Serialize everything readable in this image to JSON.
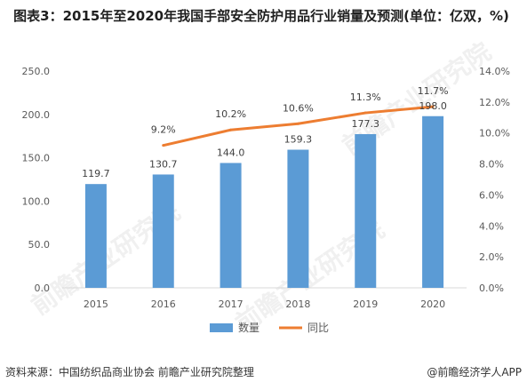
{
  "title": "图表3：2015年至2020年我国手部安全防护用品行业销量及预测(单位：亿双，%)",
  "footer": {
    "source": "资料来源：中国纺织品商业协会 前瞻产业研究院整理",
    "brand": "@前瞻经济学人APP"
  },
  "watermark": "前瞻产业研究院",
  "colors": {
    "bar": "#5B9BD5",
    "line": "#ED7D31"
  },
  "chart_data": {
    "type": "bar",
    "categories": [
      "2015",
      "2016",
      "2017",
      "2018",
      "2019",
      "2020"
    ],
    "series": [
      {
        "name": "数量",
        "type": "bar",
        "axis": "left",
        "values": [
          119.7,
          130.7,
          144.0,
          159.3,
          177.3,
          198.0
        ],
        "labels": [
          "119.7",
          "130.7",
          "144.0",
          "159.3",
          "177.3",
          "198.0"
        ]
      },
      {
        "name": "同比",
        "type": "line",
        "axis": "right",
        "values": [
          null,
          9.2,
          10.2,
          10.6,
          11.3,
          11.7
        ],
        "labels": [
          "",
          "9.2%",
          "10.2%",
          "10.6%",
          "11.3%",
          "11.7%"
        ]
      }
    ],
    "ylim_left": [
      0,
      250
    ],
    "yticks_left": [
      "0.0",
      "50.0",
      "100.0",
      "150.0",
      "200.0",
      "250.0"
    ],
    "ylim_right": [
      0,
      14
    ],
    "yticks_right": [
      "0.0%",
      "2.0%",
      "4.0%",
      "6.0%",
      "8.0%",
      "10.0%",
      "12.0%",
      "14.0%"
    ],
    "legend": [
      "数量",
      "同比"
    ],
    "legend_position": "bottom",
    "grid": false
  }
}
